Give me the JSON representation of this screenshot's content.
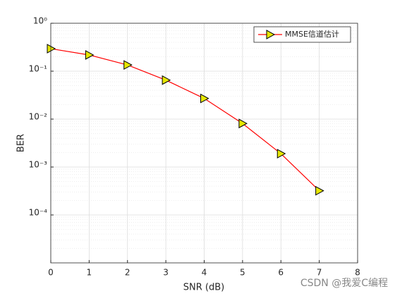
{
  "chart_data": {
    "type": "line",
    "log_y": true,
    "grid": true,
    "minor_grid": true,
    "x_label": "SNR (dB)",
    "y_label": "BER",
    "x": [
      0,
      1,
      2,
      3,
      4,
      5,
      6,
      7
    ],
    "series": [
      {
        "name": "MMSE信道估计",
        "color": "#ff0000",
        "marker_color": "#e6e600",
        "values": [
          0.295,
          0.218,
          0.135,
          0.065,
          0.027,
          0.0081,
          0.0019,
          0.00032
        ]
      }
    ],
    "xlim": [
      0,
      8
    ],
    "xticks": [
      0,
      1,
      2,
      3,
      4,
      5,
      6,
      7,
      8
    ],
    "ylim": [
      1e-05,
      1
    ],
    "yticks": [
      {
        "value": 0.0001,
        "label": "10⁻⁴"
      },
      {
        "value": 0.001,
        "label": "10⁻³"
      },
      {
        "value": 0.01,
        "label": "10⁻²"
      },
      {
        "value": 0.1,
        "label": "10⁻¹"
      },
      {
        "value": 1,
        "label": "10⁰"
      }
    ],
    "legend": "top-right",
    "watermark": "CSDN @我爱C编程"
  }
}
